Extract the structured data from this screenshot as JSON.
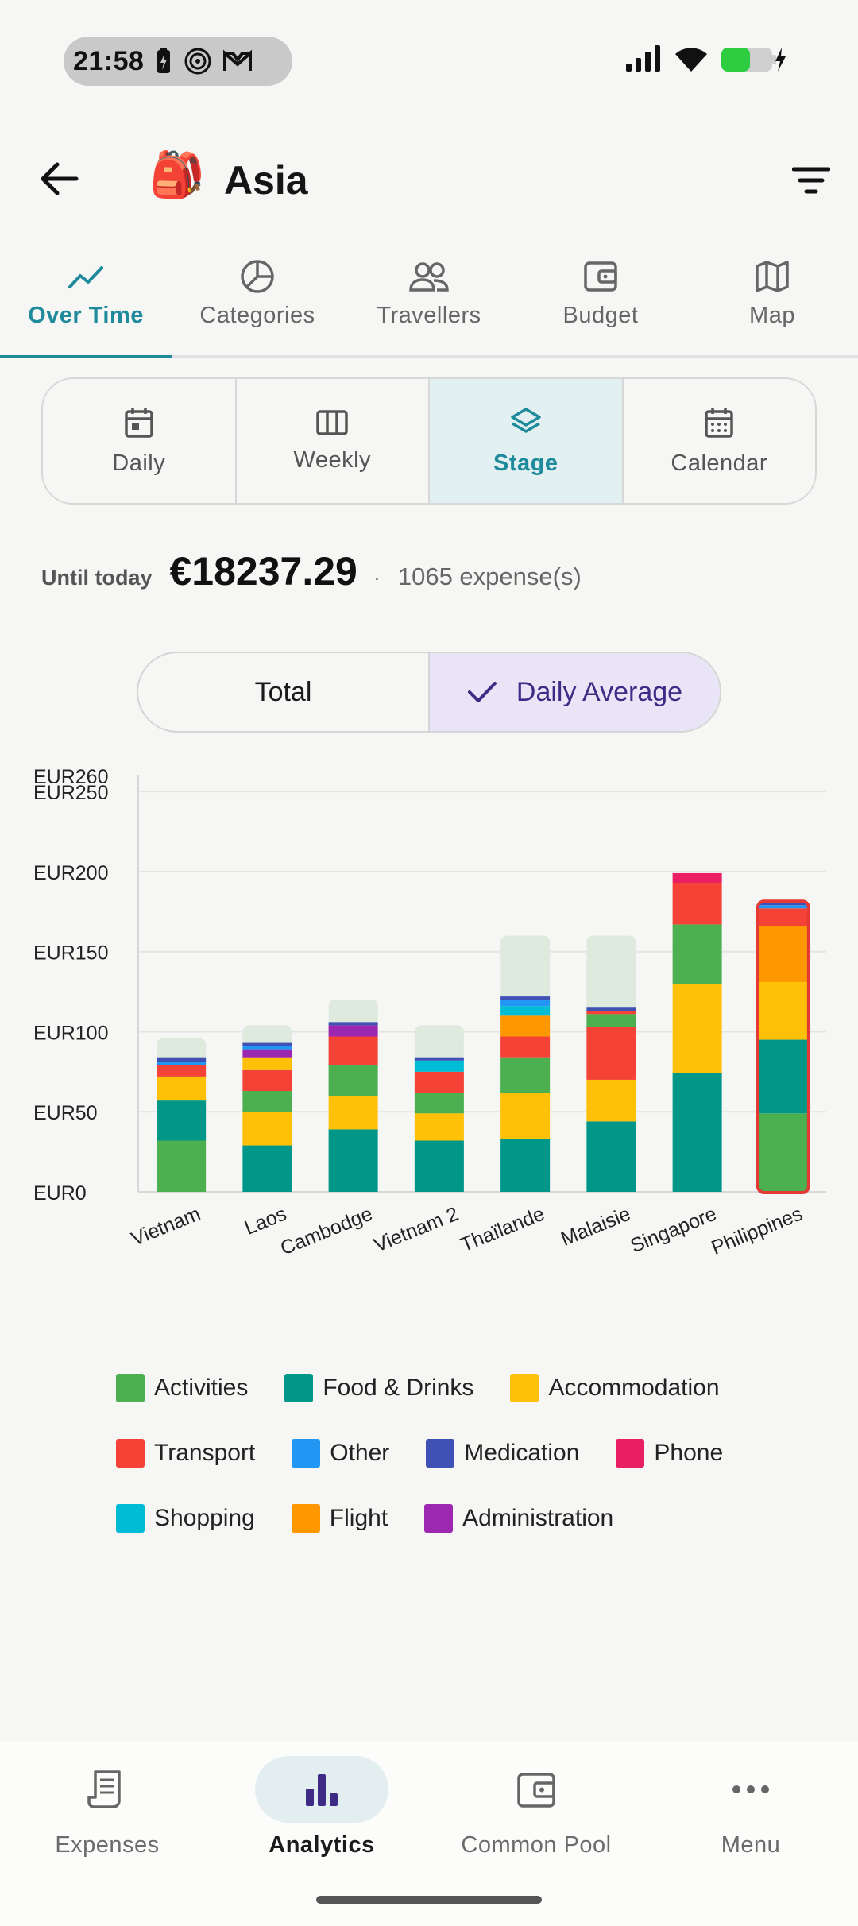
{
  "status": {
    "time": "21:58"
  },
  "appbar": {
    "title": "Asia",
    "emoji": "🎒"
  },
  "tabs": [
    {
      "label": "Over Time",
      "icon": "trend-icon",
      "active": true
    },
    {
      "label": "Categories",
      "icon": "pie-icon"
    },
    {
      "label": "Travellers",
      "icon": "people-icon"
    },
    {
      "label": "Budget",
      "icon": "wallet-icon"
    },
    {
      "label": "Map",
      "icon": "map-icon"
    }
  ],
  "views": [
    {
      "label": "Daily",
      "icon": "calendar-day-icon"
    },
    {
      "label": "Weekly",
      "icon": "columns-icon"
    },
    {
      "label": "Stage",
      "icon": "layers-icon",
      "active": true
    },
    {
      "label": "Calendar",
      "icon": "calendar-icon"
    }
  ],
  "summary": {
    "label": "Until today",
    "value": "€18237.29",
    "separator": "·",
    "count": "1065 expense(s)"
  },
  "toggle": {
    "total": "Total",
    "daily_average": "Daily Average",
    "selected": "daily_average"
  },
  "chart_data": {
    "type": "bar",
    "stacked": true,
    "categories": [
      "Vietnam",
      "Laos",
      "Cambodge",
      "Vietnam 2",
      "Thaïlande",
      "Malaisie",
      "Singapore",
      "Philippines"
    ],
    "y_ticks": [
      "EUR0",
      "EUR50",
      "EUR100",
      "EUR150",
      "EUR200",
      "EUR250",
      "EUR260"
    ],
    "ylim": [
      0,
      260
    ],
    "grid": true,
    "budget_reference": [
      96,
      104,
      120,
      104,
      160,
      160,
      null,
      null
    ],
    "highlighted_category": "Philippines",
    "series": [
      {
        "name": "Activities",
        "color": "#4caf50",
        "values": [
          32,
          0,
          0,
          0,
          0,
          0,
          0,
          49
        ]
      },
      {
        "name": "Food & Drinks",
        "color": "#009688",
        "values": [
          25,
          29,
          39,
          32,
          33,
          44,
          74,
          46
        ]
      },
      {
        "name": "Accommodation",
        "color": "#ffc107",
        "values": [
          15,
          21,
          21,
          17,
          29,
          26,
          56,
          36
        ]
      },
      {
        "name": "Activities",
        "color": "#4caf50",
        "values": [
          0,
          13,
          19,
          13,
          22,
          0,
          37,
          0
        ]
      },
      {
        "name": "Flight",
        "color": "#ff9800",
        "values": [
          0,
          0,
          0,
          0,
          0,
          0,
          0,
          35
        ]
      },
      {
        "name": "Transport",
        "color": "#f44336",
        "values": [
          7,
          13,
          18,
          13,
          13,
          33,
          26,
          11
        ]
      },
      {
        "name": "Accommodation",
        "color": "#ffc107",
        "values": [
          0,
          8,
          0,
          0,
          0,
          0,
          0,
          0
        ]
      },
      {
        "name": "Flight",
        "color": "#ff9800",
        "values": [
          0,
          0,
          0,
          0,
          13,
          0,
          0,
          0
        ]
      },
      {
        "name": "Activities",
        "color": "#4caf50",
        "values": [
          0,
          0,
          0,
          0,
          0,
          8,
          0,
          0
        ]
      },
      {
        "name": "Shopping",
        "color": "#00bcd4",
        "values": [
          0,
          0,
          0,
          7,
          6,
          0,
          0,
          0
        ]
      },
      {
        "name": "Administration",
        "color": "#9c27b0",
        "values": [
          0,
          5,
          7,
          0,
          0,
          0,
          0,
          0
        ]
      },
      {
        "name": "Transport",
        "color": "#f44336",
        "values": [
          0,
          0,
          0,
          0,
          0,
          2,
          0,
          0
        ]
      },
      {
        "name": "Phone",
        "color": "#e91e63",
        "values": [
          0,
          0,
          0,
          0,
          0,
          0,
          6,
          0
        ]
      },
      {
        "name": "Other",
        "color": "#2196f3",
        "values": [
          2,
          2,
          0,
          0,
          4,
          0,
          0,
          2
        ]
      },
      {
        "name": "Medication",
        "color": "#3f51b5",
        "values": [
          3,
          2,
          2,
          2,
          2,
          2,
          0,
          2
        ]
      }
    ]
  },
  "legend": [
    {
      "label": "Activities",
      "color": "#4caf50"
    },
    {
      "label": "Food & Drinks",
      "color": "#009688"
    },
    {
      "label": "Accommodation",
      "color": "#ffc107"
    },
    {
      "label": "Transport",
      "color": "#f44336"
    },
    {
      "label": "Other",
      "color": "#2196f3"
    },
    {
      "label": "Medication",
      "color": "#3f51b5"
    },
    {
      "label": "Phone",
      "color": "#e91e63"
    },
    {
      "label": "Shopping",
      "color": "#00bcd4"
    },
    {
      "label": "Flight",
      "color": "#ff9800"
    },
    {
      "label": "Administration",
      "color": "#9c27b0"
    }
  ],
  "bottom_nav": [
    {
      "label": "Expenses",
      "icon": "receipt-icon"
    },
    {
      "label": "Analytics",
      "icon": "bar-chart-icon",
      "active": true
    },
    {
      "label": "Common Pool",
      "icon": "wallet-icon"
    },
    {
      "label": "Menu",
      "icon": "more-icon"
    }
  ],
  "colors": {
    "accent": "#1e8a9b",
    "toggle_accent": "#3f2a86",
    "budget_reference": "#dfeadf",
    "highlight_border": "#e53935"
  }
}
